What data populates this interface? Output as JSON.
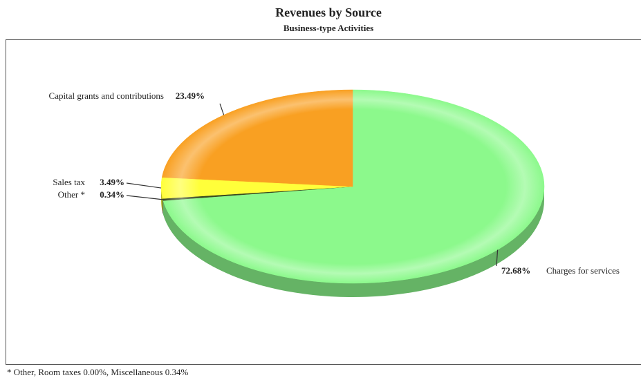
{
  "chart_data": {
    "type": "pie",
    "title": "Revenues by Source",
    "subtitle": "Business-type Activities",
    "categories": [
      "Charges for services",
      "Other *",
      "Sales tax",
      "Capital grants and contributions"
    ],
    "values": [
      72.68,
      0.34,
      3.49,
      23.49
    ],
    "value_labels": [
      "72.68%",
      "0.34%",
      "3.49%",
      "23.49%"
    ],
    "colors": [
      "#8cf98c",
      "#3a4a20",
      "#ffff3a",
      "#f9a022"
    ],
    "footnote": "* Other, Room taxes 0.00%, Miscellaneous 0.34%"
  }
}
